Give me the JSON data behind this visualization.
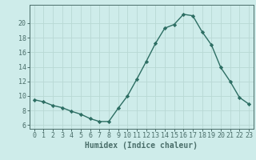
{
  "x": [
    0,
    1,
    2,
    3,
    4,
    5,
    6,
    7,
    8,
    9,
    10,
    11,
    12,
    13,
    14,
    15,
    16,
    17,
    18,
    19,
    20,
    21,
    22,
    23
  ],
  "y": [
    9.5,
    9.2,
    8.7,
    8.4,
    7.9,
    7.5,
    6.9,
    6.5,
    6.5,
    8.3,
    10.0,
    12.3,
    14.7,
    17.2,
    19.3,
    19.8,
    21.2,
    21.0,
    18.8,
    17.0,
    13.9,
    12.0,
    9.8,
    8.9
  ],
  "line_color": "#2d6e63",
  "marker": "D",
  "markersize": 2.2,
  "linewidth": 1.0,
  "xlabel": "Humidex (Indice chaleur)",
  "xlim": [
    -0.5,
    23.5
  ],
  "ylim": [
    5.5,
    22.5
  ],
  "yticks": [
    6,
    8,
    10,
    12,
    14,
    16,
    18,
    20
  ],
  "xticks": [
    0,
    1,
    2,
    3,
    4,
    5,
    6,
    7,
    8,
    9,
    10,
    11,
    12,
    13,
    14,
    15,
    16,
    17,
    18,
    19,
    20,
    21,
    22,
    23
  ],
  "bg_color": "#ceecea",
  "grid_color": "#b8d8d4",
  "spine_color": "#4a6e6a",
  "label_fontsize": 7.0,
  "tick_fontsize": 6.0
}
